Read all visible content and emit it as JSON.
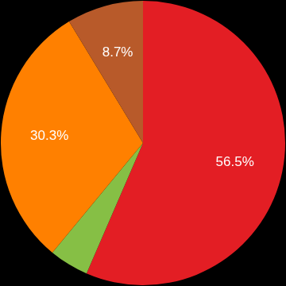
{
  "chart_data": {
    "type": "pie",
    "values": [
      56.5,
      4.5,
      30.3,
      8.7
    ],
    "value_labels": [
      "56.5%",
      null,
      "30.3%",
      "8.7%"
    ],
    "colors": [
      "#e31e24",
      "#86bf45",
      "#ff8000",
      "#b85a2a"
    ],
    "data_labels": true
  }
}
